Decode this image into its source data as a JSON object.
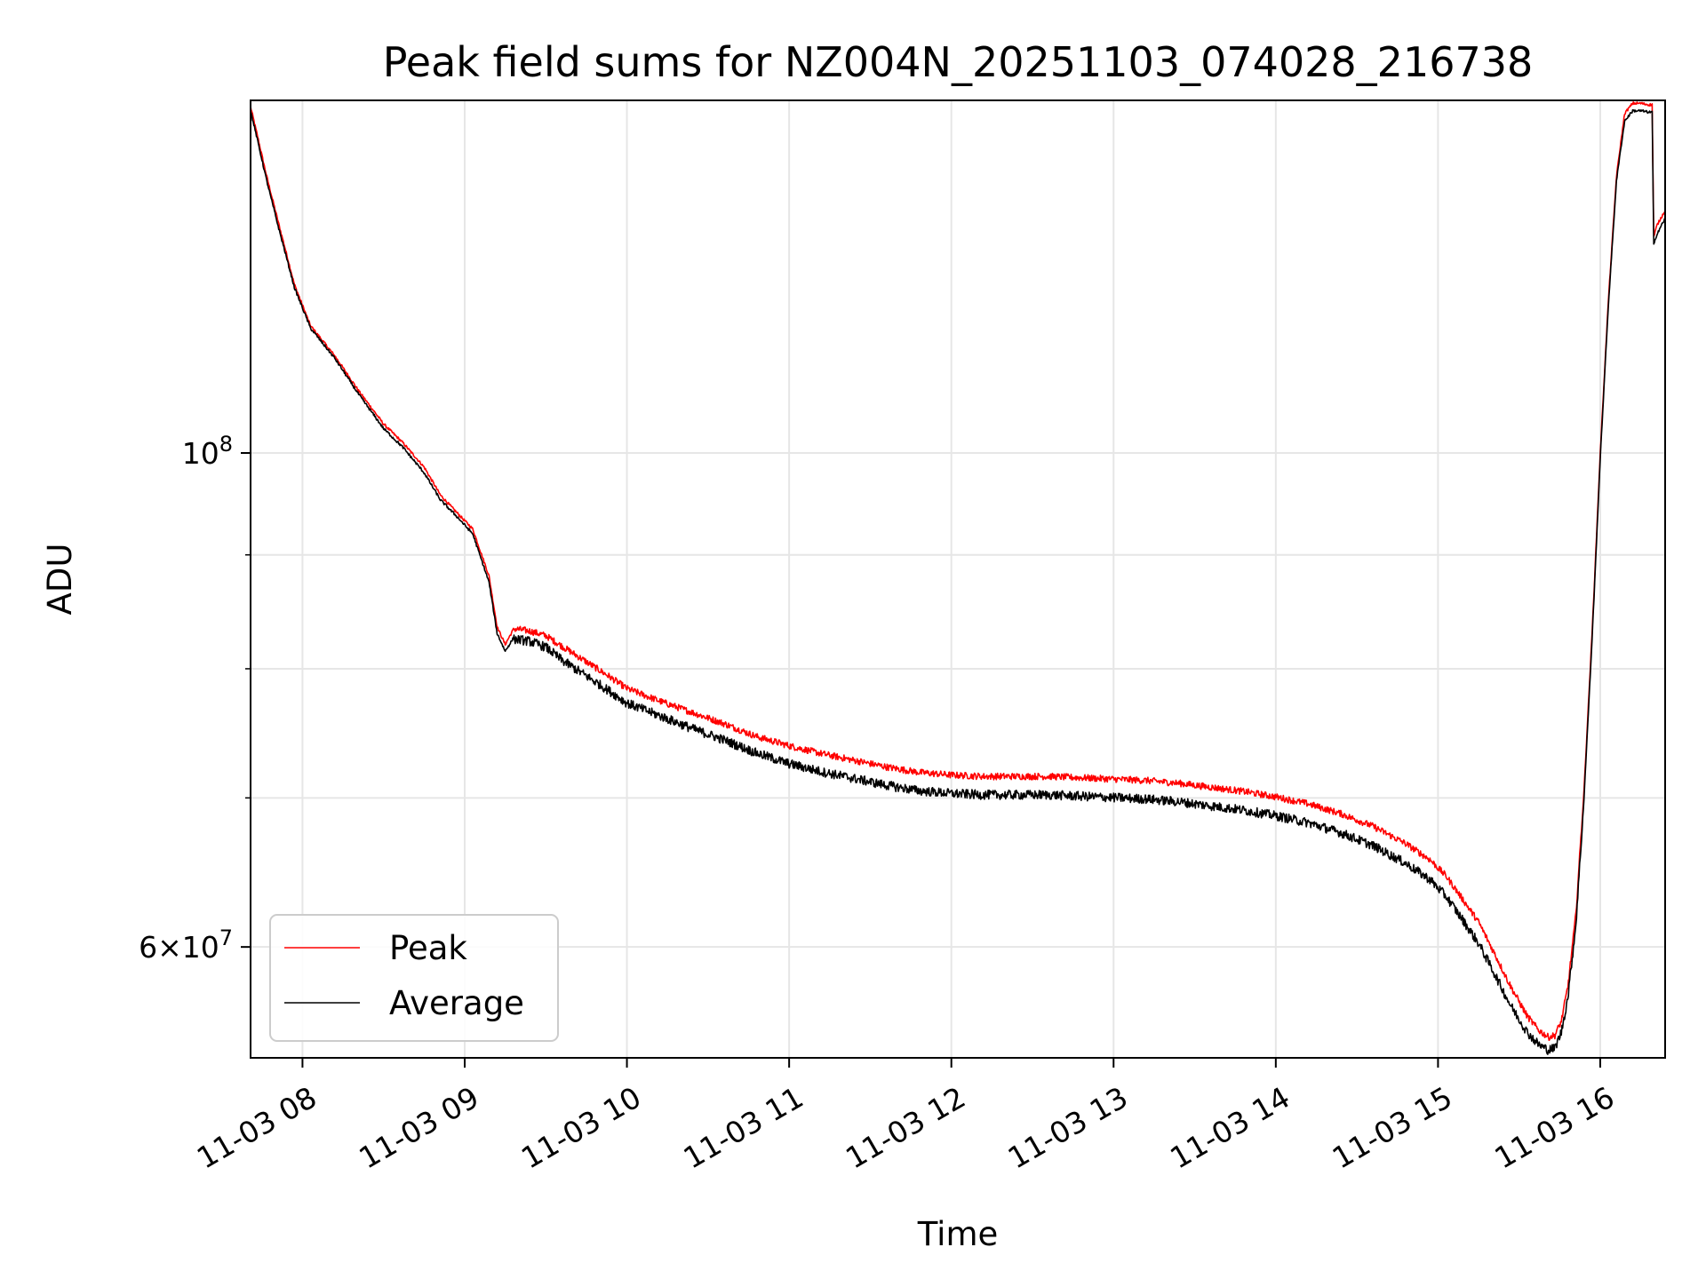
{
  "chart_data": {
    "type": "line",
    "title": "Peak field sums for NZ004N_20251103_074028_216738",
    "xlabel": "Time",
    "ylabel": "ADU",
    "yscale": "log",
    "grid": true,
    "legend_position": "lower-left",
    "xlim_hours": [
      7.68,
      16.4
    ],
    "ylim": [
      53500000,
      144000000
    ],
    "x_ticks": [
      {
        "value": 8,
        "label": "11-03 08"
      },
      {
        "value": 9,
        "label": "11-03 09"
      },
      {
        "value": 10,
        "label": "11-03 10"
      },
      {
        "value": 11,
        "label": "11-03 11"
      },
      {
        "value": 12,
        "label": "11-03 12"
      },
      {
        "value": 13,
        "label": "11-03 13"
      },
      {
        "value": 14,
        "label": "11-03 14"
      },
      {
        "value": 15,
        "label": "11-03 15"
      },
      {
        "value": 16,
        "label": "11-03 16"
      }
    ],
    "y_major_ticks": [
      {
        "value": 60000000,
        "mantissa": "6",
        "times": "×",
        "base": "10",
        "exp": "7"
      },
      {
        "value": 100000000,
        "mantissa": "",
        "times": "",
        "base": "10",
        "exp": "8"
      }
    ],
    "y_minor_ticks": [
      70000000,
      80000000,
      90000000
    ],
    "series": [
      {
        "name": "Peak",
        "color": "#ff0000",
        "x": [
          7.68,
          7.72,
          7.78,
          7.85,
          7.95,
          8.05,
          8.2,
          8.35,
          8.5,
          8.62,
          8.75,
          8.85,
          8.95,
          9.05,
          9.15,
          9.2,
          9.25,
          9.3,
          9.4,
          9.5,
          9.6,
          9.75,
          9.9,
          10.0,
          10.2,
          10.4,
          10.6,
          10.8,
          11.0,
          11.2,
          11.4,
          11.6,
          11.8,
          12.0,
          12.2,
          12.4,
          12.6,
          12.8,
          13.0,
          13.2,
          13.4,
          13.6,
          13.8,
          14.0,
          14.2,
          14.4,
          14.6,
          14.8,
          14.95,
          15.05,
          15.15,
          15.25,
          15.35,
          15.45,
          15.55,
          15.62,
          15.68,
          15.72,
          15.76,
          15.8,
          15.85,
          15.9,
          15.95,
          16.0,
          16.05,
          16.1,
          16.15,
          16.2,
          16.25,
          16.3,
          16.32,
          16.33,
          16.35,
          16.4
        ],
        "values": [
          143000000,
          139000000,
          133000000,
          127000000,
          119000000,
          114000000,
          110500000,
          106500000,
          103000000,
          101000000,
          98500000,
          95700000,
          94000000,
          92400000,
          88000000,
          83500000,
          82000000,
          83300000,
          83100000,
          82700000,
          81800000,
          80500000,
          79200000,
          78300000,
          77300000,
          76400000,
          75500000,
          74500000,
          73800000,
          73200000,
          72700000,
          72200000,
          71800000,
          71600000,
          71500000,
          71500000,
          71500000,
          71400000,
          71300000,
          71200000,
          71000000,
          70700000,
          70400000,
          70000000,
          69500000,
          68800000,
          67900000,
          66700000,
          65600000,
          64500000,
          63000000,
          61500000,
          59500000,
          57500000,
          55800000,
          55000000,
          54600000,
          54700000,
          55500000,
          57500000,
          62000000,
          70500000,
          83000000,
          100000000,
          117000000,
          133000000,
          142000000,
          143500000,
          143500000,
          143300000,
          143300000,
          125000000,
          126500000,
          128500000
        ]
      },
      {
        "name": "Average",
        "color": "#000000",
        "x": [
          7.68,
          7.72,
          7.78,
          7.85,
          7.95,
          8.05,
          8.2,
          8.35,
          8.5,
          8.62,
          8.75,
          8.85,
          8.95,
          9.05,
          9.15,
          9.2,
          9.25,
          9.3,
          9.4,
          9.5,
          9.6,
          9.75,
          9.9,
          10.0,
          10.2,
          10.4,
          10.6,
          10.8,
          11.0,
          11.2,
          11.4,
          11.6,
          11.8,
          12.0,
          12.2,
          12.4,
          12.6,
          12.8,
          13.0,
          13.2,
          13.4,
          13.6,
          13.8,
          14.0,
          14.2,
          14.4,
          14.6,
          14.8,
          14.95,
          15.05,
          15.15,
          15.25,
          15.35,
          15.45,
          15.55,
          15.62,
          15.68,
          15.72,
          15.76,
          15.8,
          15.85,
          15.9,
          15.95,
          16.0,
          16.05,
          16.1,
          16.15,
          16.2,
          16.25,
          16.3,
          16.32,
          16.33,
          16.35,
          16.4
        ],
        "values": [
          142500000,
          138500000,
          132500000,
          126500000,
          118700000,
          113800000,
          110300000,
          106200000,
          102600000,
          100600000,
          98000000,
          95300000,
          93700000,
          92000000,
          87500000,
          83000000,
          81500000,
          82600000,
          82400000,
          81900000,
          80800000,
          79500000,
          78200000,
          77300000,
          76300000,
          75300000,
          74400000,
          73400000,
          72600000,
          72000000,
          71500000,
          71000000,
          70600000,
          70400000,
          70300000,
          70300000,
          70300000,
          70200000,
          70100000,
          70000000,
          69800000,
          69500000,
          69200000,
          68800000,
          68300000,
          67600000,
          66700000,
          65500000,
          64400000,
          63300000,
          61800000,
          60300000,
          58400000,
          56500000,
          55000000,
          54300000,
          54000000,
          54100000,
          55000000,
          57000000,
          61500000,
          70000000,
          82500000,
          99500000,
          116500000,
          132500000,
          141000000,
          142500000,
          142500000,
          142300000,
          142300000,
          124000000,
          125500000,
          127500000
        ]
      }
    ]
  }
}
